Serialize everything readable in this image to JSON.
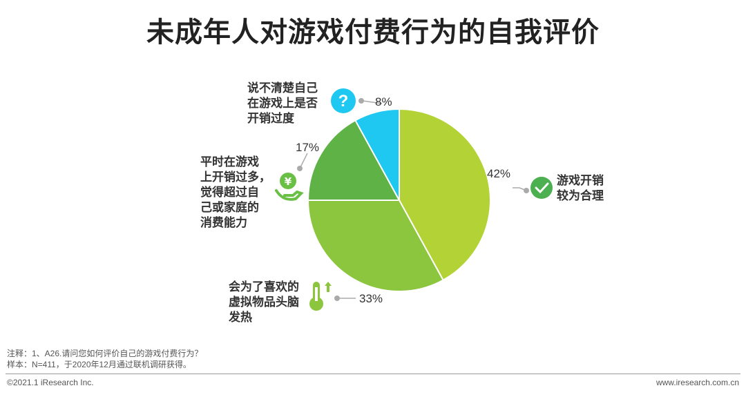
{
  "title": "未成年人对游戏付费行为的自我评价",
  "chart_data": {
    "type": "pie",
    "title": "未成年人对游戏付费行为的自我评价",
    "slices": [
      {
        "name": "游戏开销较为合理",
        "value": 42,
        "label": "42%",
        "color": "#b2d235",
        "icon": "check-icon"
      },
      {
        "name": "会为了喜欢的虚拟物品头脑发热",
        "value": 33,
        "label": "33%",
        "color": "#8cc63e",
        "icon": "thermometer-icon"
      },
      {
        "name": "平时在游戏上开销过多，觉得超过自己或家庭的消费能力",
        "value": 17,
        "label": "17%",
        "color": "#5fb246",
        "icon": "money-hand-icon"
      },
      {
        "name": "说不清楚自己在游戏上是否开销过度",
        "value": 8,
        "label": "8%",
        "color": "#1ec8f0",
        "icon": "question-icon"
      }
    ]
  },
  "labels": {
    "reasonable": [
      "游戏开销",
      "较为合理"
    ],
    "impulsive": [
      "会为了喜欢的",
      "虚拟物品头脑",
      "发热"
    ],
    "excessive": [
      "平时在游戏",
      "上开销过多，",
      "觉得超过自",
      "己或家庭的",
      "消费能力"
    ],
    "unsure": [
      "说不清楚自己",
      "在游戏上是否",
      "开销过度"
    ]
  },
  "notes": {
    "note": "注释：1、A26.请问您如何评价自己的游戏付费行为？",
    "sample": "样本：N=411，于2020年12月通过联机调研获得。"
  },
  "footer": {
    "copyright": "©2021.1 iResearch Inc.",
    "website": "www.iresearch.com.cn"
  }
}
